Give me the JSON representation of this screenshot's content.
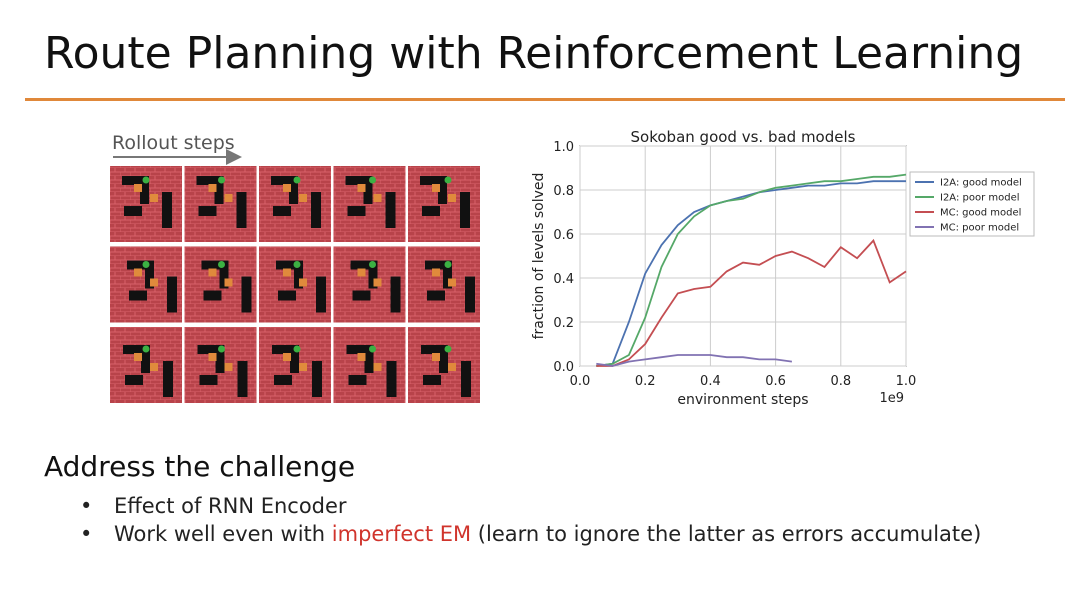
{
  "title": "Route Planning with Reinforcement Learning",
  "figure": {
    "label": "Rollout steps"
  },
  "chart_data": {
    "type": "line",
    "title": "Sokoban good vs. bad models",
    "x_label": "environment steps",
    "y_label": "fraction of levels solved",
    "x_scale_label": "1e9",
    "x": [
      0.05,
      0.1,
      0.15,
      0.2,
      0.25,
      0.3,
      0.35,
      0.4,
      0.45,
      0.5,
      0.55,
      0.6,
      0.65,
      0.7,
      0.75,
      0.8,
      0.85,
      0.9,
      0.95,
      1.0
    ],
    "series": [
      {
        "name": "I2A: good model",
        "color": "#4c72b0",
        "values": [
          0.0,
          0.01,
          0.2,
          0.42,
          0.55,
          0.64,
          0.7,
          0.73,
          0.75,
          0.77,
          0.79,
          0.8,
          0.81,
          0.82,
          0.82,
          0.83,
          0.83,
          0.84,
          0.84,
          0.84
        ]
      },
      {
        "name": "I2A: poor model",
        "color": "#55a868",
        "values": [
          0.0,
          0.01,
          0.05,
          0.22,
          0.45,
          0.6,
          0.68,
          0.73,
          0.75,
          0.76,
          0.79,
          0.81,
          0.82,
          0.83,
          0.84,
          0.84,
          0.85,
          0.86,
          0.86,
          0.87
        ]
      },
      {
        "name": "MC: good model",
        "color": "#c44e52",
        "values": [
          0.0,
          0.0,
          0.03,
          0.1,
          0.22,
          0.33,
          0.35,
          0.36,
          0.43,
          0.47,
          0.46,
          0.5,
          0.52,
          0.49,
          0.45,
          0.54,
          0.49,
          0.57,
          0.38,
          0.43
        ]
      },
      {
        "name": "MC: poor model",
        "color": "#8172b2",
        "values": [
          0.01,
          0.0,
          0.02,
          0.03,
          0.04,
          0.05,
          0.05,
          0.05,
          0.04,
          0.04,
          0.03,
          0.03,
          0.02,
          null,
          null,
          null,
          null,
          null,
          null,
          null
        ]
      }
    ],
    "xlim": [
      0,
      1.0
    ],
    "ylim": [
      0,
      1.0
    ],
    "xticks": [
      {
        "value": 0,
        "label": "0.0"
      },
      0.2,
      0.4,
      0.6,
      0.8,
      {
        "value": 1.0,
        "label": "1.0"
      }
    ],
    "yticks": [
      {
        "value": 0,
        "label": "0.0"
      },
      0.2,
      0.4,
      0.6,
      0.8,
      {
        "value": 1.0,
        "label": "1.0"
      }
    ],
    "grid": true,
    "legend": "outside-right"
  },
  "section": {
    "heading": "Address the challenge",
    "bullets": [
      [
        "Effect of RNN Encoder"
      ],
      [
        "Work well even with ",
        "imperfect EM",
        " (learn to ignore the latter as errors accumulate)"
      ]
    ]
  }
}
